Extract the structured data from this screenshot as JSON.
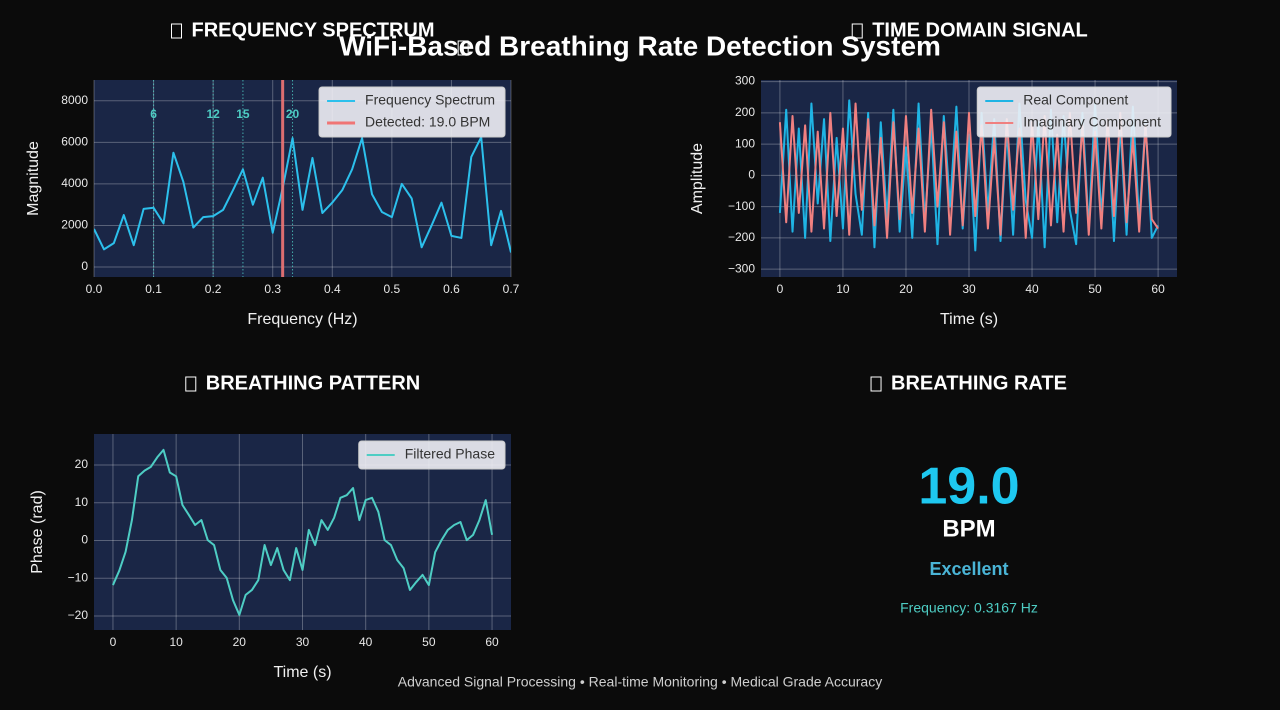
{
  "title": "WiFi-Based Breathing Rate Detection System",
  "footer": "Advanced Signal Processing • Real-time Monitoring • Medical Grade Accuracy",
  "chart_data": [
    {
      "type": "line",
      "title": "FREQUENCY SPECTRUM",
      "x_label": "Frequency (Hz)",
      "y_label": "Magnitude",
      "x": [
        0,
        0.0167,
        0.0333,
        0.05,
        0.0667,
        0.0833,
        0.1,
        0.1167,
        0.1333,
        0.15,
        0.1667,
        0.1833,
        0.2,
        0.2167,
        0.2333,
        0.25,
        0.2667,
        0.2833,
        0.3,
        0.3167,
        0.3333,
        0.35,
        0.3667,
        0.3833,
        0.4,
        0.4167,
        0.4333,
        0.45,
        0.4667,
        0.4833,
        0.5,
        0.5167,
        0.5333,
        0.55,
        0.5667,
        0.5833,
        0.6,
        0.6167,
        0.6333,
        0.65,
        0.6667,
        0.6833,
        0.7
      ],
      "series": [
        {
          "name": "Frequency Spectrum",
          "color": "#2cc0ec",
          "values": [
            1830,
            850,
            1150,
            2500,
            1050,
            2800,
            2850,
            2100,
            5500,
            4100,
            1900,
            2400,
            2450,
            2750,
            3700,
            4700,
            3000,
            4300,
            1650,
            3800,
            6200,
            2750,
            5250,
            2600,
            3100,
            3700,
            4700,
            6200,
            3500,
            2650,
            2400,
            4000,
            3300,
            950,
            2000,
            3100,
            1500,
            1400,
            5300,
            6250,
            1050,
            2700,
            700
          ]
        }
      ],
      "markers": [
        {
          "name": "Detected: 19.0 BPM",
          "x": 0.3167,
          "color": "#f07575"
        }
      ],
      "reference_lines": [
        {
          "x": 0.1,
          "label": "6"
        },
        {
          "x": 0.2,
          "label": "12"
        },
        {
          "x": 0.25,
          "label": "15"
        },
        {
          "x": 0.3333,
          "label": "20"
        }
      ],
      "reference_color": "#4ecdc4",
      "xlim": [
        0,
        0.7
      ],
      "ylim": [
        -480,
        9000
      ],
      "xticks": [
        {
          "value": 0,
          "label": "0.0"
        },
        0.1,
        0.2,
        0.3,
        0.4,
        0.5,
        0.6,
        0.7
      ],
      "yticks": [
        0,
        2000,
        4000,
        6000,
        8000
      ],
      "grid": true,
      "legend": "upper right"
    },
    {
      "type": "line",
      "title": "TIME DOMAIN SIGNAL",
      "x_label": "Time (s)",
      "y_label": "Amplitude",
      "x": [
        0,
        1,
        2,
        3,
        4,
        5,
        6,
        7,
        8,
        9,
        10,
        11,
        12,
        13,
        14,
        15,
        16,
        17,
        18,
        19,
        20,
        21,
        22,
        23,
        24,
        25,
        26,
        27,
        28,
        29,
        30,
        31,
        32,
        33,
        34,
        35,
        36,
        37,
        38,
        39,
        40,
        41,
        42,
        43,
        44,
        45,
        46,
        47,
        48,
        49,
        50,
        51,
        52,
        53,
        54,
        55,
        56,
        57,
        58,
        59,
        60
      ],
      "series": [
        {
          "name": "Real Component",
          "color": "#1fb4e4",
          "values": [
            -120,
            210,
            -180,
            150,
            -200,
            230,
            -90,
            180,
            -210,
            120,
            -170,
            240,
            -60,
            -190,
            200,
            -230,
            170,
            -140,
            210,
            -180,
            90,
            -200,
            230,
            -150,
            160,
            -220,
            190,
            -100,
            220,
            -170,
            130,
            -240,
            200,
            -120,
            180,
            -210,
            150,
            -190,
            230,
            -80,
            -200,
            170,
            -230,
            210,
            -150,
            190,
            -110,
            -220,
            200,
            -170,
            230,
            -130,
            180,
            -210,
            160,
            -190,
            220,
            -150,
            170,
            -200,
            -160
          ]
        },
        {
          "name": "Imaginary Component",
          "color": "#f08080",
          "values": [
            170,
            -150,
            190,
            -120,
            160,
            -180,
            140,
            -170,
            200,
            -130,
            150,
            -190,
            230,
            -110,
            180,
            -160,
            120,
            -200,
            170,
            -140,
            190,
            -120,
            150,
            -180,
            210,
            -100,
            170,
            -190,
            140,
            -160,
            200,
            -130,
            160,
            -170,
            120,
            -190,
            180,
            -110,
            150,
            -200,
            170,
            -140,
            190,
            -160,
            130,
            -180,
            200,
            -120,
            160,
            -190,
            140,
            -170,
            180,
            -130,
            200,
            -150,
            120,
            -180,
            160,
            -140,
            -170
          ]
        }
      ],
      "xlim": [
        -3,
        63
      ],
      "ylim": [
        -325,
        305
      ],
      "xticks": [
        0,
        10,
        20,
        30,
        40,
        50,
        60
      ],
      "yticks": [
        {
          "value": -300,
          "label": "−300"
        },
        {
          "value": -200,
          "label": "−200"
        },
        {
          "value": -100,
          "label": "−100"
        },
        0,
        100,
        200,
        300
      ],
      "grid": true,
      "legend": "upper right"
    },
    {
      "type": "line",
      "title": "BREATHING PATTERN",
      "x_label": "Time (s)",
      "y_label": "Phase (rad)",
      "x": [
        0,
        1,
        2,
        3,
        4,
        5,
        6,
        7,
        8,
        9,
        10,
        11,
        12,
        13,
        14,
        15,
        16,
        17,
        18,
        19,
        20,
        21,
        22,
        23,
        24,
        25,
        26,
        27,
        28,
        29,
        30,
        31,
        32,
        33,
        34,
        35,
        36,
        37,
        38,
        39,
        40,
        41,
        42,
        43,
        44,
        45,
        46,
        47,
        48,
        49,
        50,
        51,
        52,
        53,
        54,
        55,
        56,
        57,
        58,
        59,
        60
      ],
      "series": [
        {
          "name": "Filtered Phase",
          "color": "#4ecdc4",
          "values": [
            -11.8,
            -8,
            -3,
            5.4,
            17,
            18.5,
            19.5,
            22,
            24,
            18,
            17,
            9.4,
            6.8,
            4.1,
            5.4,
            0.1,
            -1.2,
            -7.8,
            -9.9,
            -15.8,
            -19.7,
            -14.4,
            -13.1,
            -10.5,
            -1.2,
            -6.5,
            -2,
            -7.8,
            -10.5,
            -2,
            -7.8,
            2.8,
            -1.2,
            5.4,
            2.8,
            6,
            11.3,
            12,
            13.9,
            5.4,
            10.7,
            11.3,
            7.6,
            0.1,
            -1.2,
            -5.2,
            -7.3,
            -13.1,
            -11,
            -9.1,
            -11.8,
            -3.1,
            0.1,
            2.8,
            4.1,
            4.9,
            0.1,
            1.5,
            5.4,
            10.7,
            1.5
          ]
        }
      ],
      "xlim": [
        -3,
        63
      ],
      "ylim": [
        -23.7,
        28.2
      ],
      "xticks": [
        0,
        10,
        20,
        30,
        40,
        50,
        60
      ],
      "yticks": [
        {
          "value": -20,
          "label": "−20"
        },
        {
          "value": -10,
          "label": "−10"
        },
        0,
        10,
        20
      ],
      "grid": true,
      "legend": "upper right"
    },
    {
      "type": "indicator",
      "title": "BREATHING RATE",
      "value": "19.0",
      "unit": "BPM",
      "status": "Excellent",
      "frequency": "Frequency: 0.3167 Hz"
    }
  ]
}
